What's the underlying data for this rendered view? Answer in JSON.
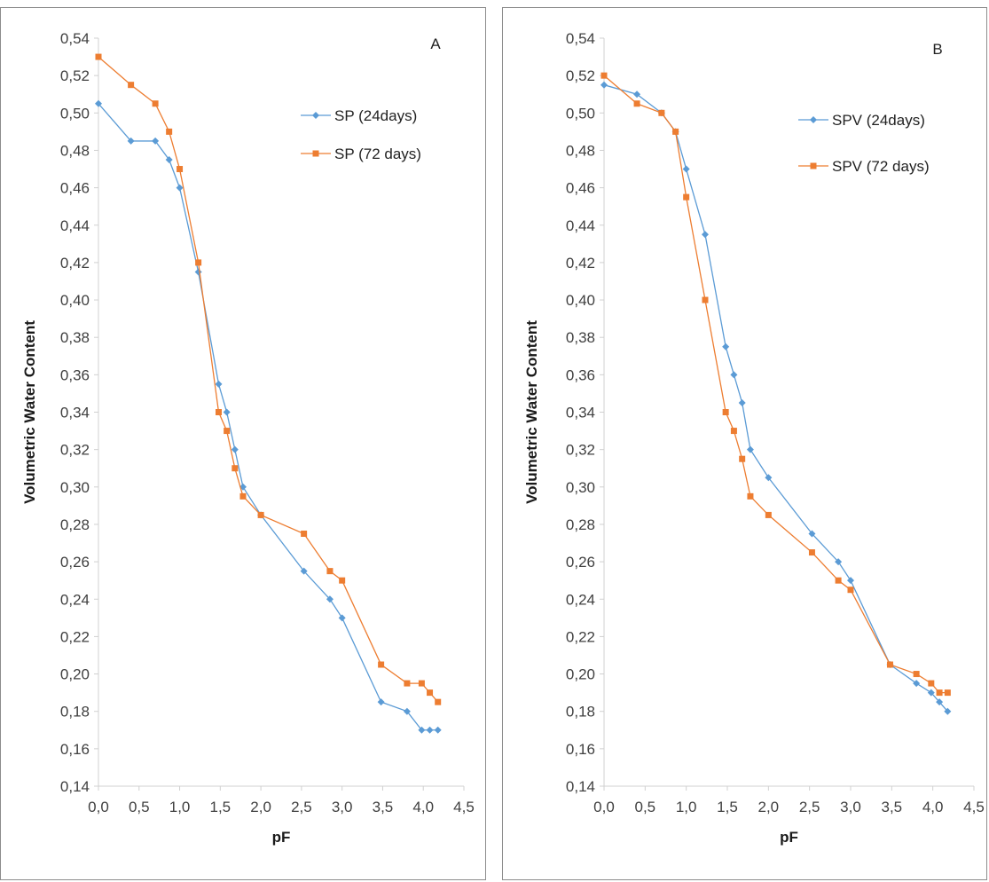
{
  "chart_data": [
    {
      "type": "line",
      "panel_label": "A",
      "xlabel": "pF",
      "ylabel": "Volumetric Water Content",
      "xlim": [
        0,
        4.5
      ],
      "ylim": [
        0.14,
        0.54
      ],
      "x_ticks": [
        "0,0",
        "0,5",
        "1,0",
        "1,5",
        "2,0",
        "2,5",
        "3,0",
        "3,5",
        "4,0",
        "4,5"
      ],
      "y_ticks": [
        "0,14",
        "0,16",
        "0,18",
        "0,20",
        "0,22",
        "0,24",
        "0,26",
        "0,28",
        "0,30",
        "0,32",
        "0,34",
        "0,36",
        "0,38",
        "0,40",
        "0,42",
        "0,44",
        "0,46",
        "0,48",
        "0,50",
        "0,52",
        "0,54"
      ],
      "grid": false,
      "legend_position": "top-right",
      "series": [
        {
          "name": "SP (24days)",
          "color": "#5b9bd5",
          "marker": "diamond",
          "x": [
            0.0,
            0.4,
            0.7,
            0.87,
            1.0,
            1.23,
            1.48,
            1.58,
            1.68,
            1.78,
            2.0,
            2.53,
            2.85,
            3.0,
            3.48,
            3.8,
            3.98,
            4.08,
            4.18
          ],
          "y": [
            0.505,
            0.485,
            0.485,
            0.475,
            0.46,
            0.415,
            0.355,
            0.34,
            0.32,
            0.3,
            0.285,
            0.255,
            0.24,
            0.23,
            0.185,
            0.18,
            0.17,
            0.17,
            0.17
          ]
        },
        {
          "name": "SP (72 days)",
          "color": "#ed7d31",
          "marker": "square",
          "x": [
            0.0,
            0.4,
            0.7,
            0.87,
            1.0,
            1.23,
            1.48,
            1.58,
            1.68,
            1.78,
            2.0,
            2.53,
            2.85,
            3.0,
            3.48,
            3.8,
            3.98,
            4.08,
            4.18
          ],
          "y": [
            0.53,
            0.515,
            0.505,
            0.49,
            0.47,
            0.42,
            0.34,
            0.33,
            0.31,
            0.295,
            0.285,
            0.275,
            0.255,
            0.25,
            0.205,
            0.195,
            0.195,
            0.19,
            0.185
          ]
        }
      ]
    },
    {
      "type": "line",
      "panel_label": "B",
      "xlabel": "pF",
      "ylabel": "Volumetric Water Content",
      "xlim": [
        0,
        4.5
      ],
      "ylim": [
        0.14,
        0.54
      ],
      "x_ticks": [
        "0,0",
        "0,5",
        "1,0",
        "1,5",
        "2,0",
        "2,5",
        "3,0",
        "3,5",
        "4,0",
        "4,5"
      ],
      "y_ticks": [
        "0,14",
        "0,16",
        "0,18",
        "0,20",
        "0,22",
        "0,24",
        "0,26",
        "0,28",
        "0,30",
        "0,32",
        "0,34",
        "0,36",
        "0,38",
        "0,40",
        "0,42",
        "0,44",
        "0,46",
        "0,48",
        "0,50",
        "0,52",
        "0,54"
      ],
      "grid": false,
      "legend_position": "top-right",
      "series": [
        {
          "name": "SPV (24days)",
          "color": "#5b9bd5",
          "marker": "diamond",
          "x": [
            0.0,
            0.4,
            0.7,
            0.87,
            1.0,
            1.23,
            1.48,
            1.58,
            1.68,
            1.78,
            2.0,
            2.53,
            2.85,
            3.0,
            3.48,
            3.8,
            3.98,
            4.08,
            4.18
          ],
          "y": [
            0.515,
            0.51,
            0.5,
            0.49,
            0.47,
            0.435,
            0.375,
            0.36,
            0.345,
            0.32,
            0.305,
            0.275,
            0.26,
            0.25,
            0.205,
            0.195,
            0.19,
            0.185,
            0.18
          ]
        },
        {
          "name": "SPV (72 days)",
          "color": "#ed7d31",
          "marker": "square",
          "x": [
            0.0,
            0.4,
            0.7,
            0.87,
            1.0,
            1.23,
            1.48,
            1.58,
            1.68,
            1.78,
            2.0,
            2.53,
            2.85,
            3.0,
            3.48,
            3.8,
            3.98,
            4.08,
            4.18
          ],
          "y": [
            0.52,
            0.505,
            0.5,
            0.49,
            0.455,
            0.4,
            0.34,
            0.33,
            0.315,
            0.295,
            0.285,
            0.265,
            0.25,
            0.245,
            0.205,
            0.2,
            0.195,
            0.19,
            0.19
          ]
        }
      ]
    }
  ]
}
